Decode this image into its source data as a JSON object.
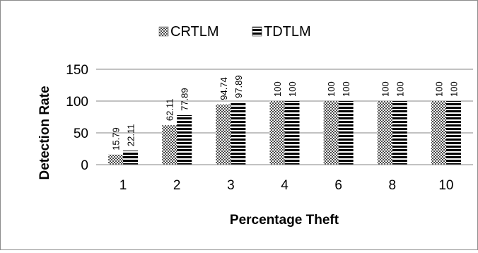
{
  "chart_data": {
    "type": "bar",
    "xlabel": "Percentage Theft",
    "ylabel": "Detection Rate",
    "categories": [
      "1",
      "2",
      "3",
      "4",
      "6",
      "8",
      "10"
    ],
    "series": [
      {
        "name": "CRTLM",
        "values": [
          15.79,
          62.11,
          94.74,
          100,
          100,
          100,
          100
        ],
        "labels": [
          "15.79",
          "62.11",
          "94.74",
          "100",
          "100",
          "100",
          "100"
        ],
        "pattern": "checkered",
        "color": "#555555"
      },
      {
        "name": "TDTLM",
        "values": [
          22.11,
          77.89,
          97.89,
          100,
          100,
          100,
          100
        ],
        "labels": [
          "22.11",
          "77.89",
          "97.89",
          "100",
          "100",
          "100",
          "100"
        ],
        "pattern": "horizontal-stripes",
        "color": "#000000"
      }
    ],
    "ylim": [
      0,
      150
    ],
    "yticks": [
      "0",
      "50",
      "100",
      "150"
    ],
    "grid": true,
    "legend_position": "top"
  }
}
